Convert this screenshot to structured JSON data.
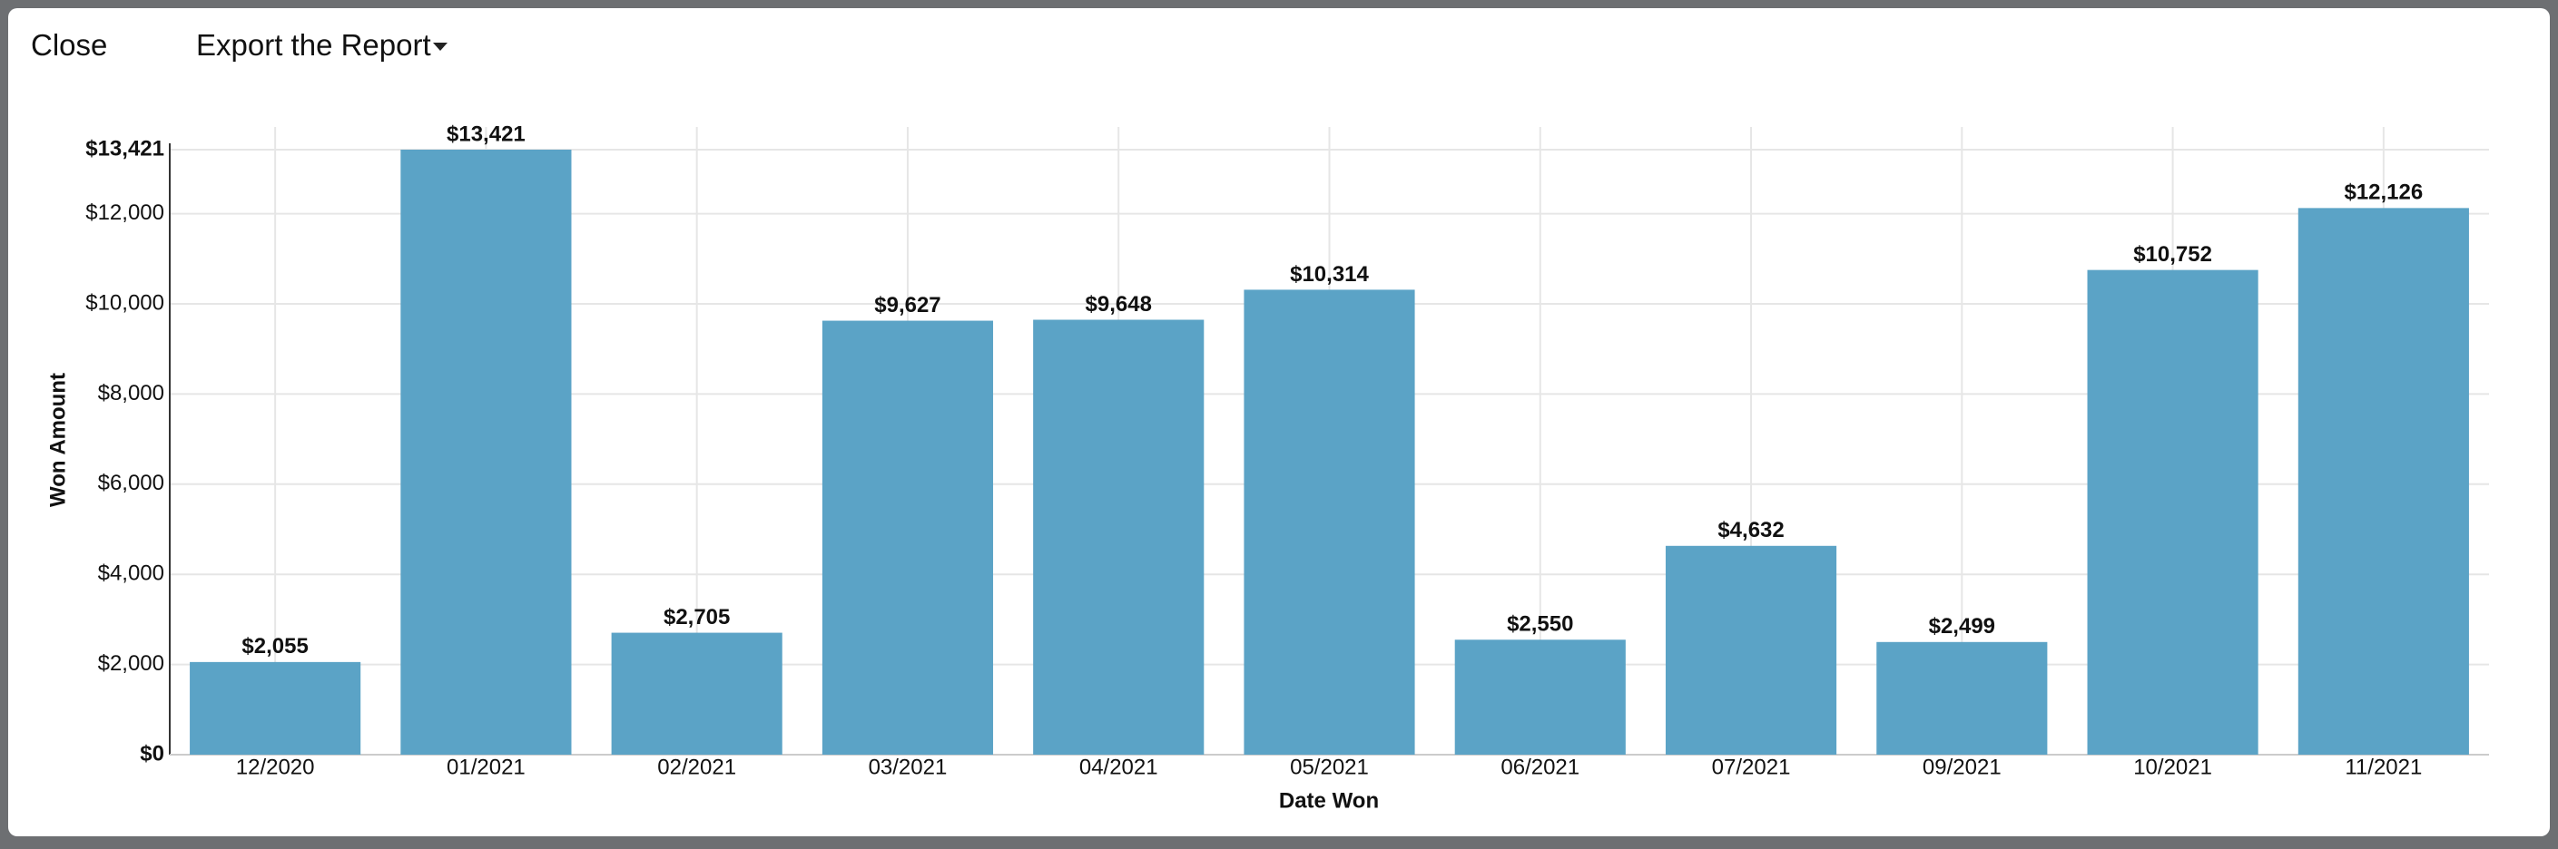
{
  "toolbar": {
    "close": "Close",
    "export": "Export the Report"
  },
  "chart_data": {
    "type": "bar",
    "x_label": "Date Won",
    "y_label": "Won Amount",
    "categories": [
      "12/2020",
      "01/2021",
      "02/2021",
      "03/2021",
      "04/2021",
      "05/2021",
      "06/2021",
      "07/2021",
      "09/2021",
      "10/2021",
      "11/2021"
    ],
    "values": [
      2055,
      13421,
      2705,
      9627,
      9648,
      10314,
      2550,
      4632,
      2499,
      10752,
      12126
    ],
    "value_labels": [
      "$2,055",
      "$13,421",
      "$2,705",
      "$9,627",
      "$9,648",
      "$10,314",
      "$2,550",
      "$4,632",
      "$2,499",
      "$10,752",
      "$12,126"
    ],
    "color": "#5ba3c6",
    "ylim": [
      0,
      13421
    ],
    "yticks": [
      {
        "value": 0,
        "label": "$0"
      },
      {
        "value": 2000,
        "label": "$2,000"
      },
      {
        "value": 4000,
        "label": "$4,000"
      },
      {
        "value": 6000,
        "label": "$6,000"
      },
      {
        "value": 8000,
        "label": "$8,000"
      },
      {
        "value": 10000,
        "label": "$10,000"
      },
      {
        "value": 12000,
        "label": "$12,000"
      },
      {
        "value": 13421,
        "label": "$13,421"
      }
    ],
    "grid": true
  }
}
